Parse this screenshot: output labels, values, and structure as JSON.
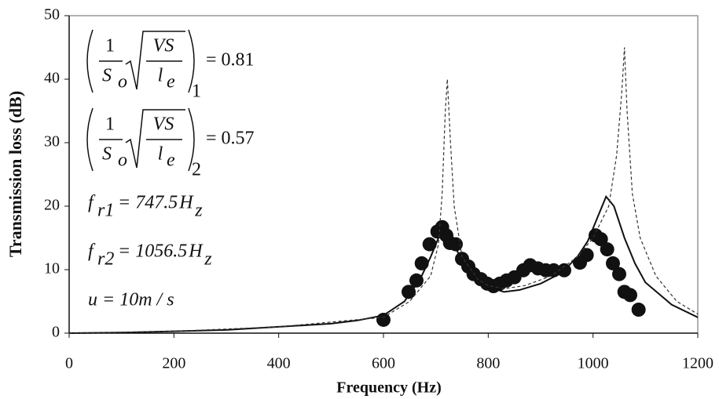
{
  "chart_data": {
    "type": "line",
    "x_label": "Frequency (Hz)",
    "y_label": "Transmission loss (dB)",
    "xlim": [
      0,
      1200
    ],
    "ylim": [
      0,
      50
    ],
    "xticks": [
      0,
      200,
      400,
      600,
      800,
      1000,
      1200
    ],
    "yticks": [
      0,
      10,
      20,
      30,
      40,
      50
    ],
    "series": [
      {
        "style": "markers",
        "color": "#111111",
        "x": [
          600,
          648,
          663,
          673,
          688,
          703,
          712,
          720,
          727,
          738,
          750,
          762,
          772,
          786,
          798,
          810,
          822,
          835,
          850,
          867,
          880,
          895,
          910,
          925,
          945,
          975,
          988,
          1005,
          1015,
          1027,
          1038,
          1050,
          1060,
          1071,
          1087
        ],
        "values": [
          2.1,
          6.5,
          8.3,
          11,
          14,
          16,
          16.7,
          15.4,
          14.2,
          14,
          11.7,
          10.5,
          9.3,
          8.5,
          7.8,
          7.4,
          7.8,
          8.3,
          8.8,
          9.9,
          10.7,
          10.2,
          9.9,
          9.9,
          9.9,
          11.1,
          12.3,
          15.4,
          14.8,
          13.2,
          11,
          9.3,
          6.5,
          6,
          3.7
        ]
      },
      {
        "style": "solid",
        "color": "#111111",
        "x": [
          0,
          100,
          200,
          300,
          400,
          500,
          550,
          600,
          640,
          670,
          690,
          705,
          715,
          725,
          740,
          760,
          780,
          800,
          830,
          860,
          900,
          940,
          970,
          990,
          1010,
          1025,
          1040,
          1060,
          1080,
          1100,
          1150,
          1200
        ],
        "values": [
          0,
          0.1,
          0.3,
          0.5,
          1,
          1.5,
          2,
          2.8,
          5,
          8.5,
          12,
          15,
          16.3,
          15.5,
          13,
          10.5,
          8.5,
          7.3,
          6.5,
          6.8,
          7.8,
          9.5,
          12,
          14.5,
          18.5,
          21.5,
          20,
          15,
          11,
          8,
          4.5,
          2.5
        ]
      },
      {
        "style": "dashed",
        "color": "#333333",
        "x": [
          0,
          200,
          400,
          600,
          650,
          690,
          705,
          712,
          718,
          722,
          728,
          735,
          750,
          780,
          800,
          830,
          870,
          920,
          970,
          1000,
          1030,
          1045,
          1055,
          1060,
          1065,
          1075,
          1090,
          1120,
          1160,
          1200
        ],
        "values": [
          0,
          0.3,
          1,
          2.5,
          5,
          9,
          14,
          22,
          35,
          40,
          30,
          20,
          12,
          8.5,
          7.5,
          7,
          7.5,
          9,
          12,
          15,
          20,
          28,
          38,
          45,
          35,
          22,
          15,
          9,
          5,
          3
        ]
      }
    ],
    "annotations": [
      {
        "numerator": "1",
        "denominator": "S",
        "denominator_sub": "o",
        "radicand_top": "VS",
        "radicand_bottom": "l",
        "radicand_bottom_sub": "e",
        "subscript": "1",
        "text": "= 0.81"
      },
      {
        "numerator": "1",
        "denominator": "S",
        "denominator_sub": "o",
        "radicand_top": "VS",
        "radicand_bottom": "l",
        "radicand_bottom_sub": "e",
        "subscript": "2",
        "text": "= 0.57"
      },
      {
        "symbol": "f",
        "sub": "r1",
        "text": "= 747.5",
        "unit": "H",
        "unit_sub": "z"
      },
      {
        "symbol": "f",
        "sub": "r2",
        "text": "= 1056.5",
        "unit": "H",
        "unit_sub": "z"
      },
      {
        "text": "u = 10m / s"
      }
    ]
  }
}
